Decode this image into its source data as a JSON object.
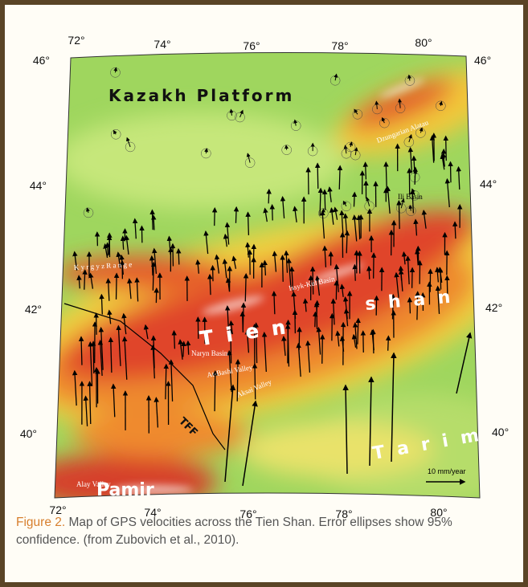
{
  "map": {
    "lon_ticks_top": [
      "72°",
      "74°",
      "76°",
      "78°",
      "80°"
    ],
    "lon_ticks_bottom": [
      "72°",
      "74°",
      "76°",
      "78°",
      "80°"
    ],
    "lat_ticks_left": [
      "46°",
      "44°",
      "42°",
      "40°"
    ],
    "lat_ticks_right": [
      "46°",
      "44°",
      "42°",
      "40°"
    ],
    "region_labels": {
      "kazakh": "Kazakh Platform",
      "tien": "T i e n",
      "shan": "s h a n",
      "tarim": "T a r i m",
      "pamir": "Pamir"
    },
    "feature_labels": {
      "dzungarian": "Dzungarian Alatau",
      "ili": "Ili Basin",
      "issyk": "Issyk-Kul Basin",
      "kyrgyz": "K y r g y z   R a n g e",
      "naryn": "Naryn Basin",
      "atbashi": "At-Bashi Valley",
      "aksai": "Aksai Valley",
      "alay": "Alay Valley",
      "tff": "TFF"
    },
    "scale_label": "10 mm/year"
  },
  "caption": {
    "figure_label": "Figure 2.",
    "text": "Map of GPS velocities across the Tien Shan. Error ellipses show 95% confidence. (from Zubovich et al., 2010)."
  }
}
